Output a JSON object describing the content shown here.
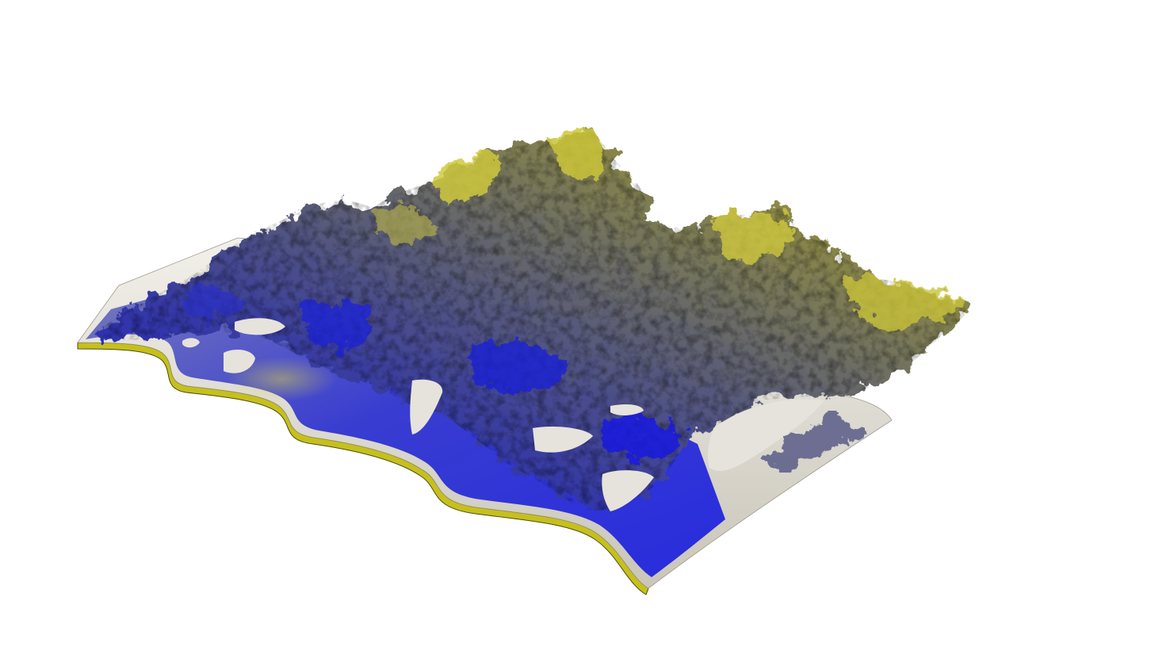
{
  "scene": {
    "subject": "wavy-airfoil-turbulence-isosurface",
    "colors": {
      "background": "#ffffff",
      "surface_light": "#e9e6de",
      "surface_shadow": "#b8b4aa",
      "edge_yellow": "#c8c21a",
      "edge_dark": "#5c5a10",
      "blue_high": "#1c1fd8",
      "blue_mid": "#3a3fa8",
      "gray_mid": "#5d5f72",
      "olive": "#8d8a4a",
      "yellow_high": "#cdc73e"
    }
  }
}
